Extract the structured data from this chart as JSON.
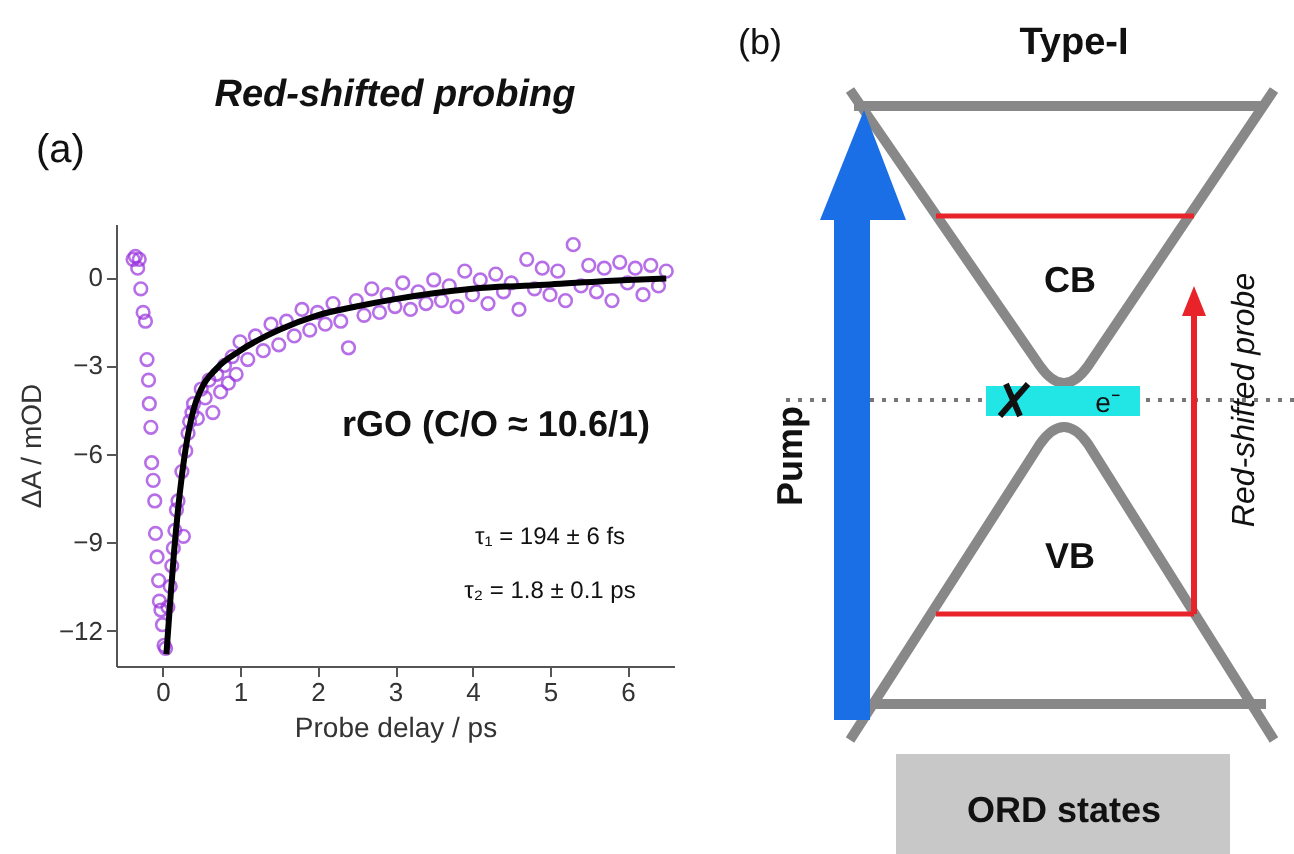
{
  "chart_data": [
    {
      "type": "scatter",
      "title": "Red-shifted probing",
      "xlabel": "Probe delay / ps",
      "ylabel": "ΔA / mOD",
      "marker": "circle",
      "annotations": [
        "(a)",
        "rGO (C/O ≈ 10.6/1)",
        "τ₁ = 194 ± 6 fs",
        "τ₂ = 1.8 ± 0.1 ps"
      ],
      "xlim": [
        -0.6,
        6.6
      ],
      "xticks": [
        0,
        1,
        2,
        3,
        4,
        5,
        6
      ],
      "ylim": [
        -13.2,
        1.8
      ],
      "yticks": [
        -12,
        -9,
        -6,
        -3,
        0
      ],
      "series": [
        {
          "type": "scatter",
          "color": "#9933dd",
          "x": [
            -0.38,
            -0.35,
            -0.32,
            -0.3,
            -0.28,
            -0.25,
            -0.22,
            -0.2,
            -0.18,
            -0.17,
            -0.15,
            -0.14,
            -0.12,
            -0.1,
            -0.09,
            -0.07,
            -0.05,
            -0.04,
            -0.02,
            0,
            0.02,
            0.04,
            0.07,
            0.1,
            0.12,
            0.14,
            0.16,
            0.18,
            0.2,
            0.25,
            0.27,
            0.3,
            0.33,
            0.35,
            0.38,
            0.4,
            0.45,
            0.5,
            0.55,
            0.6,
            0.65,
            0.7,
            0.75,
            0.8,
            0.85,
            0.9,
            0.95,
            1.0,
            1.1,
            1.2,
            1.3,
            1.4,
            1.5,
            1.6,
            1.7,
            1.8,
            1.9,
            2.0,
            2.1,
            2.2,
            2.3,
            2.4,
            2.5,
            2.6,
            2.7,
            2.8,
            2.9,
            3.0,
            3.1,
            3.2,
            3.3,
            3.4,
            3.5,
            3.6,
            3.7,
            3.8,
            3.9,
            4.0,
            4.1,
            4.2,
            4.3,
            4.4,
            4.5,
            4.6,
            4.7,
            4.8,
            4.9,
            5.0,
            5.1,
            5.2,
            5.3,
            5.4,
            5.5,
            5.6,
            5.7,
            5.8,
            5.9,
            6.0,
            6.1,
            6.2,
            6.3,
            6.4,
            6.5
          ],
          "values": [
            0.6,
            0.7,
            0.3,
            0.6,
            -0.4,
            -1.2,
            -1.5,
            -2.8,
            -3.5,
            -4.3,
            -5.1,
            -6.3,
            -6.9,
            -7.6,
            -8.7,
            -9.5,
            -10.3,
            -11,
            -11.3,
            -11.8,
            -12.5,
            -12.6,
            -11.2,
            -10.5,
            -9.8,
            -9.2,
            -8.6,
            -7.9,
            -7.6,
            -6.6,
            -8.8,
            -5.9,
            -5.3,
            -4.9,
            -4.6,
            -4.3,
            -4.8,
            -3.8,
            -4.1,
            -3.5,
            -4.6,
            -3.3,
            -3.9,
            -3.0,
            -3.6,
            -2.7,
            -3.3,
            -2.2,
            -2.8,
            -2.0,
            -2.5,
            -1.6,
            -2.3,
            -1.5,
            -2.0,
            -1.1,
            -1.8,
            -1.2,
            -1.6,
            -0.9,
            -1.5,
            -2.4,
            -0.8,
            -1.3,
            -0.4,
            -1.2,
            -0.6,
            -1.0,
            -0.2,
            -1.1,
            -0.5,
            -0.9,
            -0.1,
            -0.8,
            -0.3,
            -1.0,
            0.2,
            -0.6,
            -0.1,
            -0.9,
            0.1,
            -0.5,
            -0.2,
            -1.1,
            0.6,
            -0.4,
            0.3,
            -0.6,
            0.2,
            -0.8,
            1.1,
            -0.3,
            0.4,
            -0.5,
            0.3,
            -0.8,
            0.5,
            -0.2,
            0.3,
            -0.6,
            0.4,
            -0.3,
            0.2
          ]
        },
        {
          "type": "line",
          "color": "#000000",
          "marker": "none",
          "x": [
            0.05,
            0.1,
            0.15,
            0.2,
            0.3,
            0.4,
            0.5,
            0.7,
            1,
            1.5,
            2,
            2.5,
            3,
            3.5,
            4,
            5,
            6,
            6.5
          ],
          "values": [
            -12.8,
            -11,
            -9.3,
            -7.9,
            -5.8,
            -4.5,
            -3.8,
            -3.1,
            -2.5,
            -1.8,
            -1.3,
            -1.0,
            -0.75,
            -0.55,
            -0.4,
            -0.25,
            -0.1,
            -0.05
          ]
        }
      ]
    },
    {
      "type": "other",
      "title": "Type-I",
      "annotations": [
        "(b)",
        "CB",
        "VB",
        "Pump",
        "Red-shifted probe",
        "e⁻",
        "ORD states"
      ]
    }
  ]
}
